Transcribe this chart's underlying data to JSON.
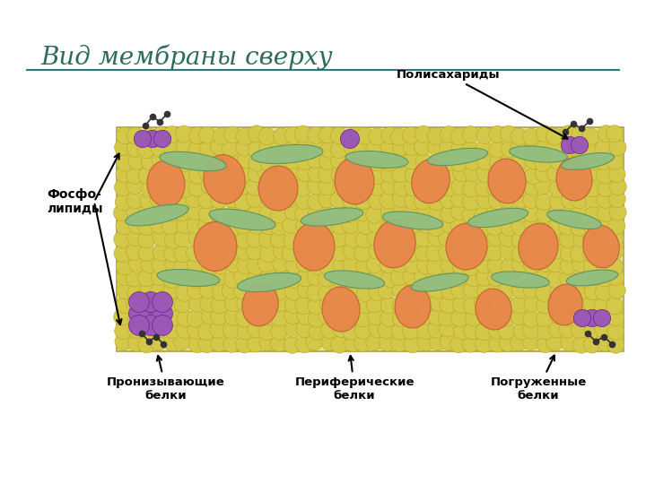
{
  "title": "Вид мембраны сверху",
  "title_fontsize": 20,
  "title_color": "#2d6b5e",
  "border_color": "#2c7a7a",
  "background_color": "#ffffff",
  "membrane_bg": "#e8e0a0",
  "phospholipid_color": "#d4c84a",
  "phospholipid_edge_color": "#b8a820",
  "green_protein_color": "#8fbe82",
  "green_protein_edge": "#5a9060",
  "orange_protein_color": "#e8844a",
  "orange_protein_edge": "#c06030",
  "purple_color": "#9b59b6",
  "purple_edge": "#6a2090",
  "chain_color": "#444444",
  "label_proniz": "Пронизывающие\nбелки",
  "label_perif": "Периферические\nбелки",
  "label_pogr": "Погруженные\nбелки",
  "label_fosfo": "Фосфо-\nлипиды",
  "label_poli": "Полисахариды",
  "figsize": [
    7.2,
    5.4
  ],
  "dpi": 100
}
